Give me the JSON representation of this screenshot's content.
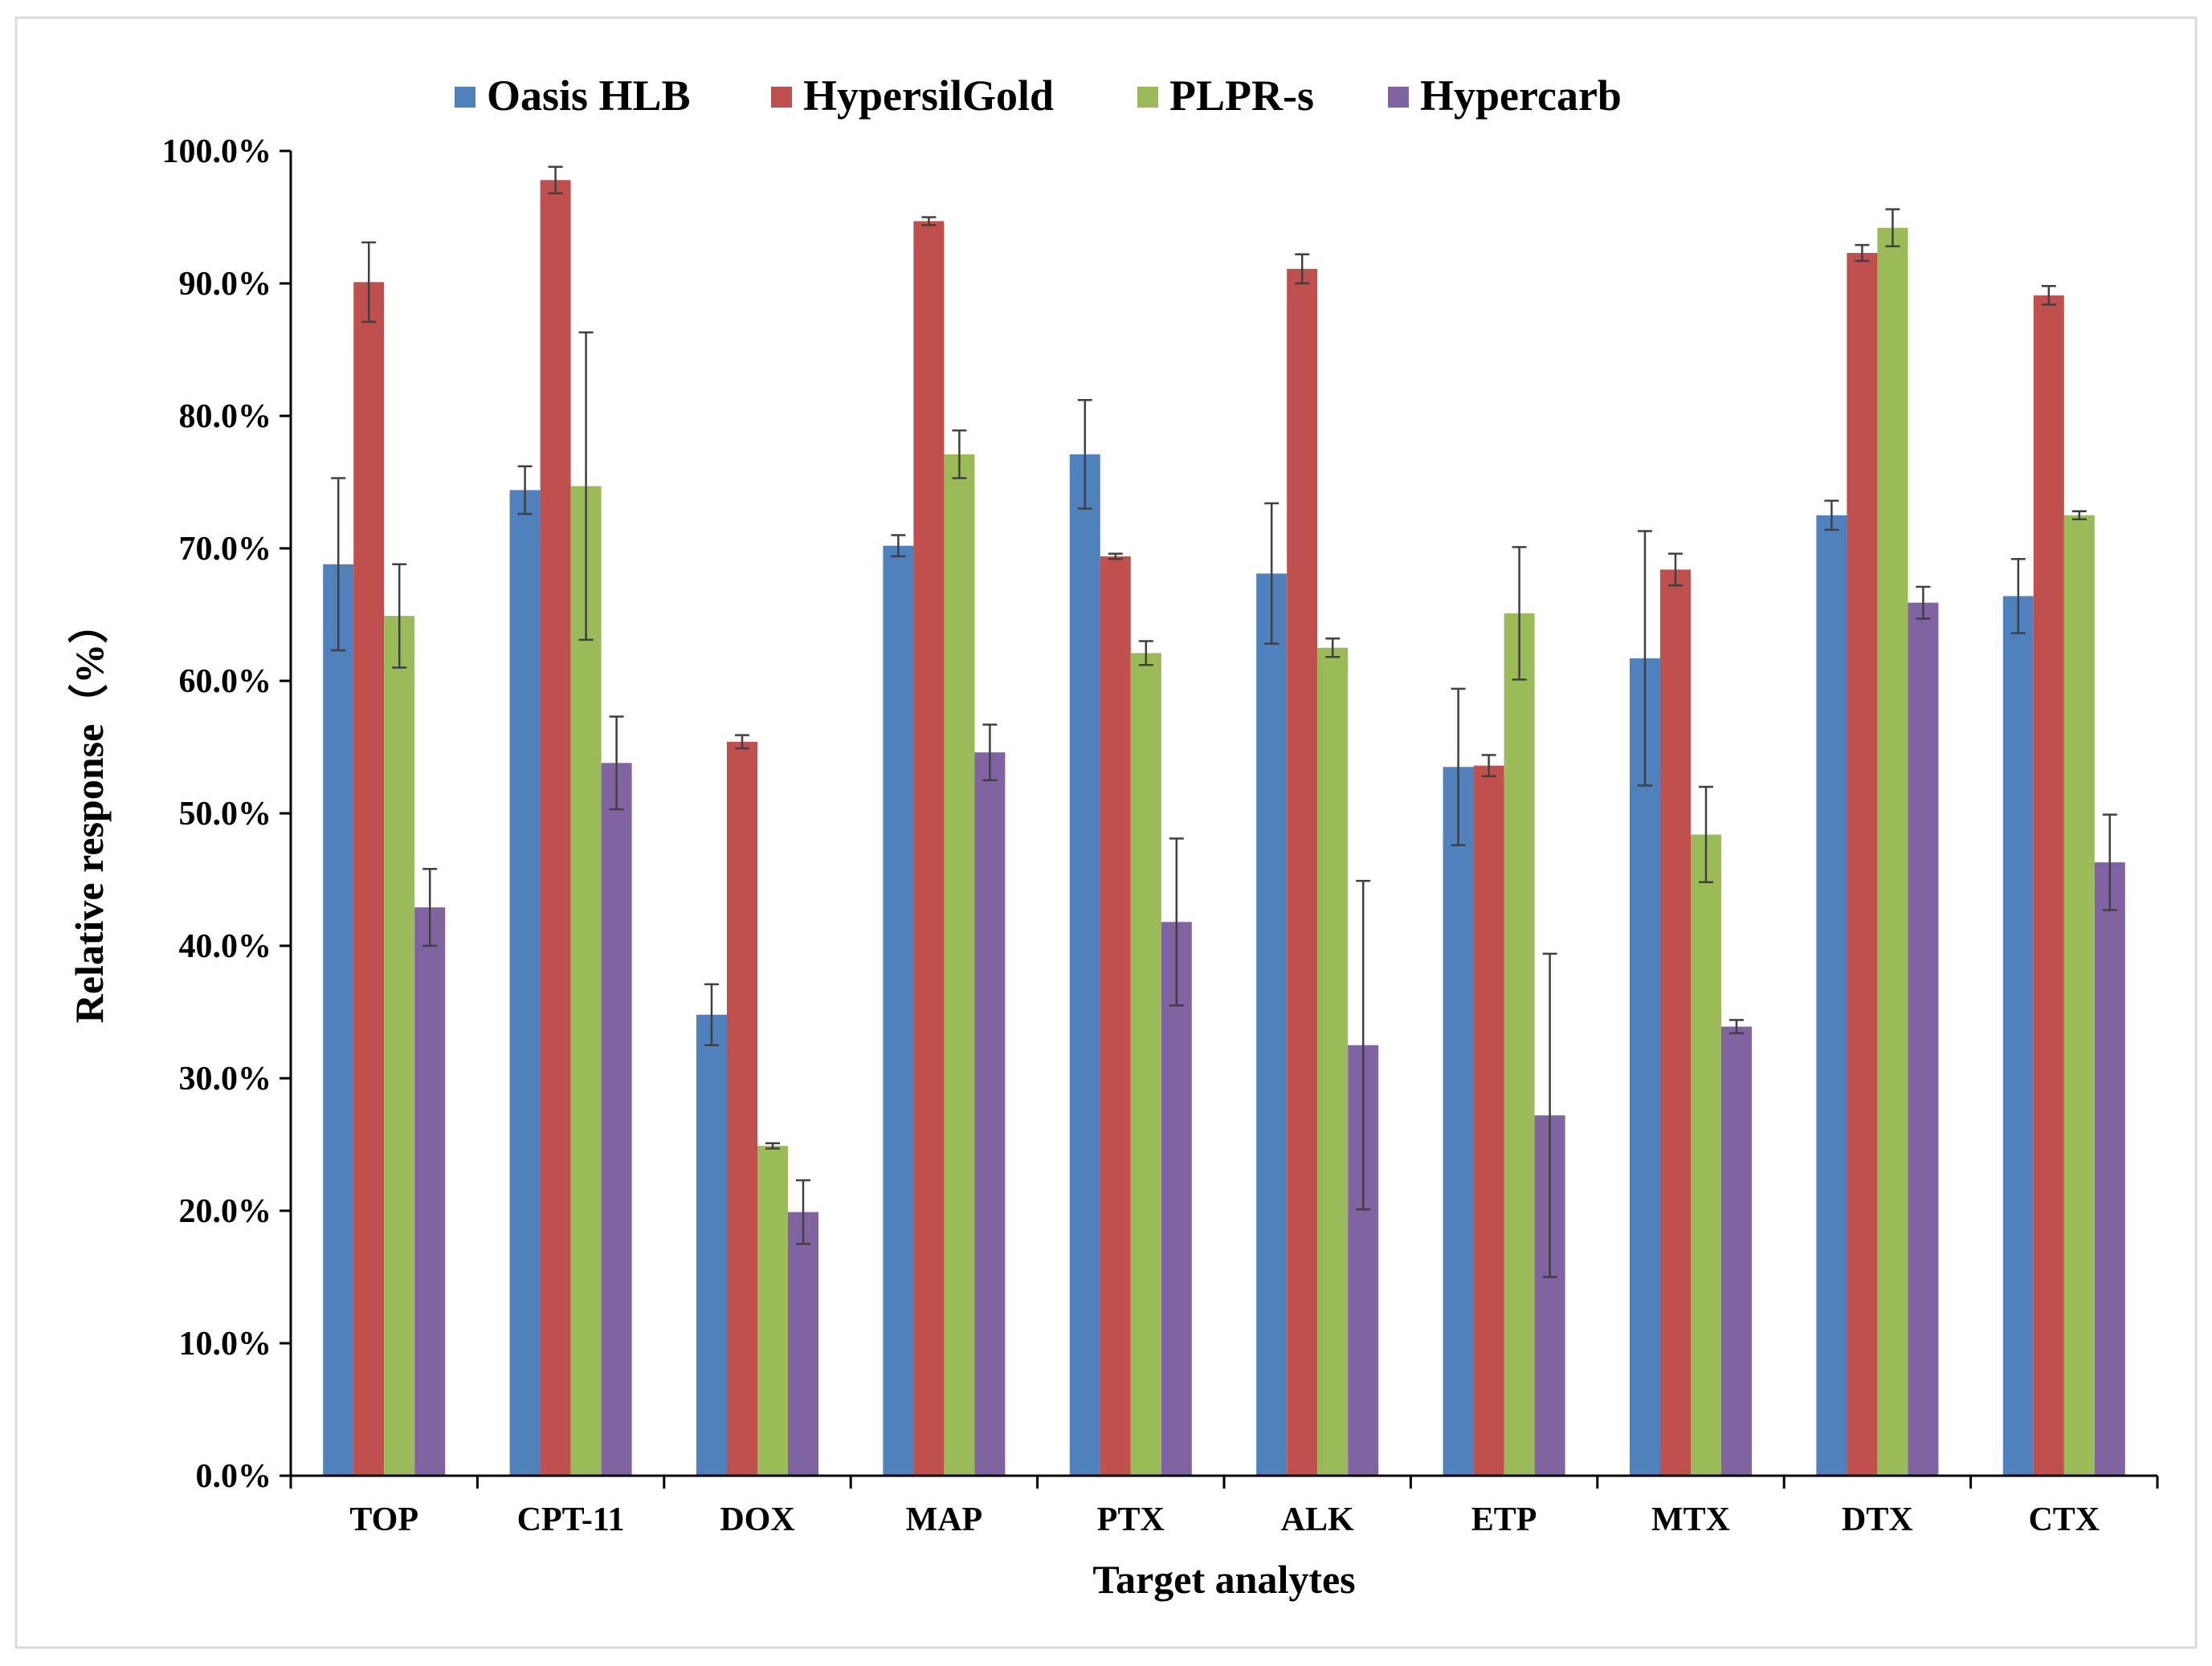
{
  "chart_data": {
    "type": "bar",
    "title": "",
    "xlabel": "Target analytes",
    "ylabel": "Relative response（%）",
    "ylim": [
      0,
      100
    ],
    "ytick_step": 10,
    "ytick_format": "percent-1dp",
    "categories": [
      "TOP",
      "CPT-11",
      "DOX",
      "MAP",
      "PTX",
      "ALK",
      "ETP",
      "MTX",
      "DTX",
      "CTX"
    ],
    "legend_position": "top",
    "series": [
      {
        "name": "Oasis HLB",
        "color": "#4F81BD",
        "values": [
          68.8,
          74.4,
          34.8,
          70.2,
          77.1,
          68.1,
          53.5,
          61.7,
          72.5,
          66.4
        ],
        "errors": [
          6.5,
          1.8,
          2.3,
          0.8,
          4.1,
          5.3,
          5.9,
          9.6,
          1.1,
          2.8
        ]
      },
      {
        "name": "HypersilGold",
        "color": "#C0504D",
        "values": [
          90.1,
          97.8,
          55.4,
          94.7,
          69.4,
          91.1,
          53.6,
          68.4,
          92.3,
          89.1
        ],
        "errors": [
          3.0,
          1.0,
          0.5,
          0.3,
          0.2,
          1.1,
          0.8,
          1.2,
          0.6,
          0.7
        ]
      },
      {
        "name": "PLPR-s",
        "color": "#9BBB59",
        "values": [
          64.9,
          74.7,
          24.9,
          77.1,
          62.1,
          62.5,
          65.1,
          48.4,
          94.2,
          72.5
        ],
        "errors": [
          3.9,
          11.6,
          0.2,
          1.8,
          0.9,
          0.7,
          5.0,
          3.6,
          1.4,
          0.3
        ]
      },
      {
        "name": "Hypercarb",
        "color": "#8064A2",
        "values": [
          42.9,
          53.8,
          19.9,
          54.6,
          41.8,
          32.5,
          27.2,
          33.9,
          65.9,
          46.3
        ],
        "errors": [
          2.9,
          3.5,
          2.4,
          2.1,
          6.3,
          12.4,
          12.2,
          0.5,
          1.2,
          3.6
        ]
      }
    ]
  }
}
